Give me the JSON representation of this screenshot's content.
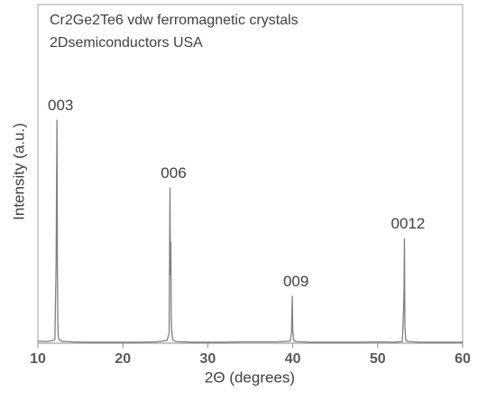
{
  "chart_data": {
    "type": "line",
    "title": "Cr2Ge2Te6 vdw ferromagnetic crystals",
    "subtitle": "2Dsemiconductors USA",
    "x_label": "2Θ (degrees)",
    "y_label": "Intensity (a.u.)",
    "xlim": [
      10,
      60
    ],
    "xticks": [
      10,
      20,
      30,
      40,
      50,
      60
    ],
    "ylim": [
      0,
      100
    ],
    "x": [
      10,
      11,
      11.8,
      12.0,
      12.15,
      12.2,
      12.25,
      12.3,
      12.35,
      12.4,
      12.5,
      12.8,
      14,
      16,
      18,
      20,
      22,
      24,
      25.2,
      25.45,
      25.55,
      25.6,
      25.65,
      25.7,
      25.75,
      25.8,
      25.9,
      26.2,
      28,
      30,
      32,
      34,
      36,
      38,
      39.7,
      39.85,
      39.9,
      39.95,
      40.0,
      40.1,
      40.3,
      42,
      44,
      46,
      48,
      50,
      52,
      52.9,
      53.05,
      53.1,
      53.15,
      53.2,
      53.3,
      53.5,
      55,
      57,
      59,
      60
    ],
    "series": [
      {
        "color": "#808080",
        "values": [
          0.6,
          0.5,
          0.8,
          1.2,
          24,
          46,
          66,
          20,
          6,
          2,
          1,
          0.6,
          0.4,
          0.3,
          0.3,
          0.3,
          0.3,
          0.4,
          0.8,
          3,
          46,
          20,
          30,
          8,
          4,
          2,
          1,
          0.5,
          0.3,
          0.3,
          0.3,
          0.4,
          0.4,
          0.4,
          0.6,
          3,
          8,
          14,
          4,
          1,
          0.5,
          0.3,
          0.3,
          0.3,
          0.3,
          0.4,
          0.3,
          0.5,
          10,
          16,
          31,
          5,
          1,
          0.5,
          0.3,
          0.3,
          0.3,
          0.3
        ]
      }
    ],
    "annotations": [
      {
        "text": "003",
        "x": 12.25,
        "y": 66
      },
      {
        "text": "006",
        "x": 25.55,
        "y": 46
      },
      {
        "text": "009",
        "x": 39.95,
        "y": 14
      },
      {
        "text": "0012",
        "x": 53.15,
        "y": 31
      }
    ]
  }
}
